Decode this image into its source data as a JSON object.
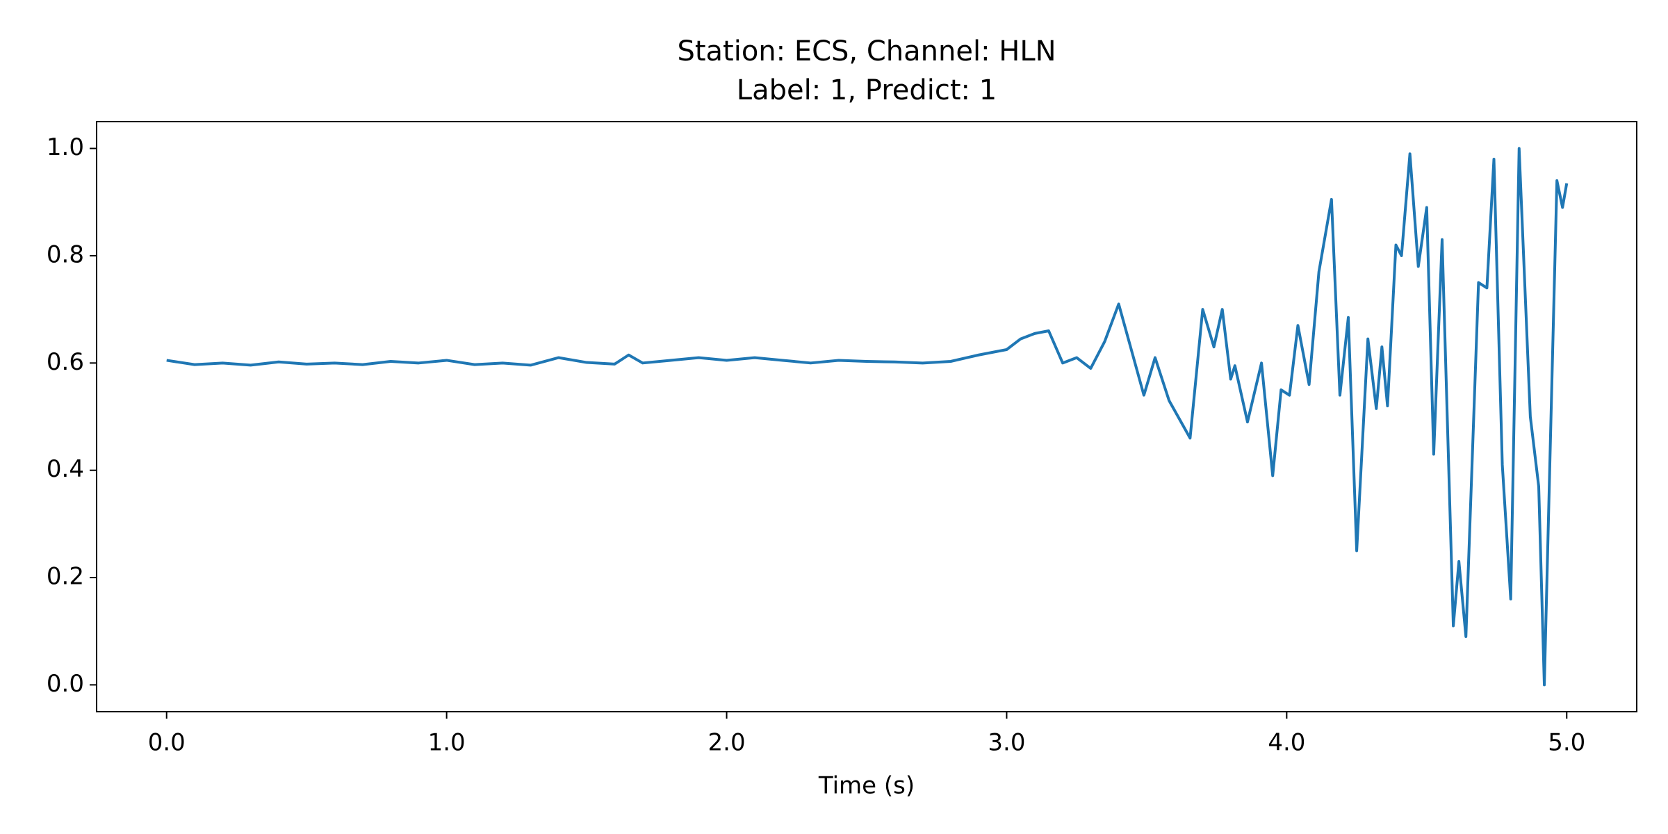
{
  "chart_data": {
    "type": "line",
    "title": "Station: ECS, Channel: HLN",
    "subtitle": "Label: 1, Predict: 1",
    "x_label": "Time (s)",
    "color": "#1f77b4",
    "x": [
      0.0,
      0.1,
      0.2,
      0.3,
      0.4,
      0.5,
      0.6,
      0.7,
      0.8,
      0.9,
      1.0,
      1.1,
      1.2,
      1.3,
      1.4,
      1.5,
      1.6,
      1.65,
      1.7,
      1.8,
      1.9,
      2.0,
      2.1,
      2.2,
      2.3,
      2.4,
      2.5,
      2.6,
      2.7,
      2.8,
      2.9,
      3.0,
      3.05,
      3.1,
      3.15,
      3.2,
      3.25,
      3.3,
      3.35,
      3.4,
      3.49,
      3.53,
      3.58,
      3.655,
      3.7,
      3.74,
      3.77,
      3.8,
      3.815,
      3.86,
      3.91,
      3.95,
      3.98,
      4.01,
      4.04,
      4.08,
      4.115,
      4.16,
      4.19,
      4.22,
      4.25,
      4.29,
      4.32,
      4.34,
      4.36,
      4.39,
      4.41,
      4.44,
      4.47,
      4.5,
      4.525,
      4.555,
      4.595,
      4.615,
      4.64,
      4.685,
      4.715,
      4.74,
      4.77,
      4.8,
      4.83,
      4.87,
      4.9,
      4.92,
      4.965,
      4.985,
      5.0
    ],
    "values": [
      0.605,
      0.597,
      0.6,
      0.596,
      0.602,
      0.598,
      0.6,
      0.597,
      0.603,
      0.6,
      0.605,
      0.597,
      0.6,
      0.596,
      0.61,
      0.601,
      0.598,
      0.615,
      0.6,
      0.605,
      0.61,
      0.605,
      0.61,
      0.605,
      0.6,
      0.605,
      0.603,
      0.602,
      0.6,
      0.603,
      0.615,
      0.625,
      0.645,
      0.655,
      0.66,
      0.6,
      0.61,
      0.59,
      0.64,
      0.71,
      0.54,
      0.61,
      0.53,
      0.46,
      0.7,
      0.63,
      0.7,
      0.57,
      0.595,
      0.49,
      0.6,
      0.39,
      0.55,
      0.54,
      0.67,
      0.56,
      0.77,
      0.905,
      0.54,
      0.685,
      0.25,
      0.645,
      0.515,
      0.63,
      0.52,
      0.82,
      0.8,
      0.99,
      0.78,
      0.89,
      0.43,
      0.83,
      0.11,
      0.23,
      0.09,
      0.75,
      0.74,
      0.98,
      0.41,
      0.16,
      1.0,
      0.5,
      0.37,
      0.0,
      0.94,
      0.89,
      0.935
    ],
    "xlim": [
      -0.25,
      5.25
    ],
    "xticks": [
      {
        "value": 0,
        "label": "0.0"
      },
      {
        "value": 1,
        "label": "1.0"
      },
      {
        "value": 2,
        "label": "2.0"
      },
      {
        "value": 3,
        "label": "3.0"
      },
      {
        "value": 4,
        "label": "4.0"
      },
      {
        "value": 5,
        "label": "5.0"
      }
    ],
    "ylim": [
      -0.05,
      1.05
    ],
    "yticks": [
      {
        "value": 0,
        "label": "0.0"
      },
      0.2,
      0.4,
      0.6,
      0.8,
      {
        "value": 1,
        "label": "1.0"
      }
    ]
  }
}
